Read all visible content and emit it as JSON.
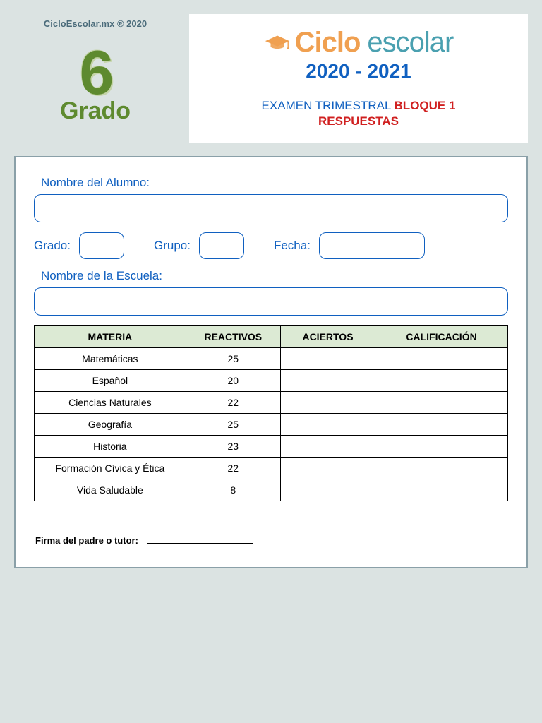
{
  "copyright": "CicloEscolar.mx ® 2020",
  "grade": {
    "number": "6",
    "label": "Grado"
  },
  "brand": {
    "ciclo": "Ciclo",
    "escolar": "escolar",
    "year": "2020 - 2021",
    "cap_color": "#f0a050",
    "ciclo_color": "#f0a050",
    "escolar_color": "#4aa0b0",
    "year_color": "#1060c0"
  },
  "exam": {
    "prefix": "EXAMEN TRIMESTRAL ",
    "bloque": "BLOQUE 1",
    "respuestas": "RESPUESTAS"
  },
  "form": {
    "nombre_alumno_label": "Nombre del Alumno:",
    "grado_label": "Grado:",
    "grupo_label": "Grupo:",
    "fecha_label": "Fecha:",
    "escuela_label": "Nombre de la Escuela:"
  },
  "table": {
    "headers": {
      "materia": "MATERIA",
      "reactivos": "REACTIVOS",
      "aciertos": "ACIERTOS",
      "calificacion": "CALIFICACIÓN"
    },
    "header_bg": "#dcead4",
    "col_widths": [
      "32%",
      "20%",
      "20%",
      "28%"
    ],
    "rows": [
      {
        "materia": "Matemáticas",
        "reactivos": "25",
        "aciertos": "",
        "calificacion": ""
      },
      {
        "materia": "Español",
        "reactivos": "20",
        "aciertos": "",
        "calificacion": ""
      },
      {
        "materia": "Ciencias Naturales",
        "reactivos": "22",
        "aciertos": "",
        "calificacion": ""
      },
      {
        "materia": "Geografía",
        "reactivos": "25",
        "aciertos": "",
        "calificacion": ""
      },
      {
        "materia": "Historia",
        "reactivos": "23",
        "aciertos": "",
        "calificacion": ""
      },
      {
        "materia": "Formación Cívica y Ética",
        "reactivos": "22",
        "aciertos": "",
        "calificacion": ""
      },
      {
        "materia": "Vida Saludable",
        "reactivos": "8",
        "aciertos": "",
        "calificacion": ""
      }
    ]
  },
  "signature_label": "Firma del padre o tutor:",
  "colors": {
    "page_bg": "#dbe3e2",
    "card_bg": "#ffffff",
    "card_border": "#8aa0a8",
    "field_label": "#1060c0",
    "input_border": "#1060c0",
    "grade_color": "#5e8a2f",
    "red": "#d02020"
  }
}
